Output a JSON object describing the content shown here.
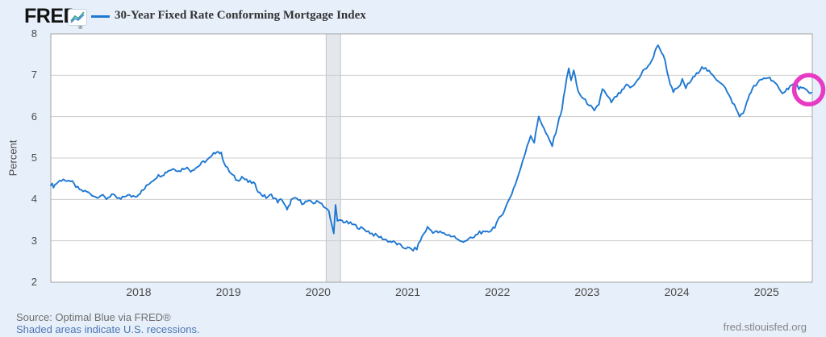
{
  "page": {
    "background": "#e7f0fa"
  },
  "header": {
    "logo_text": "FRED",
    "registered_mark": "®",
    "legend_label": "30-Year Fixed Rate Conforming Mortgage Index"
  },
  "footer": {
    "source_line": "Source: Optimal Blue via FRED®",
    "recession_note": "Shaded areas indicate U.S. recessions.",
    "site_link": "fred.stlouisfed.org"
  },
  "chart_data": {
    "type": "line",
    "title": "30-Year Fixed Rate Conforming Mortgage Index",
    "xlabel": "",
    "ylabel": "Percent",
    "x_range": [
      2017.02,
      2025.51
    ],
    "y_range": [
      2,
      8
    ],
    "yticks": [
      2,
      3,
      4,
      5,
      6,
      7,
      8
    ],
    "xticks": [
      2018,
      2019,
      2020,
      2021,
      2022,
      2023,
      2024,
      2025
    ],
    "grid": true,
    "legend_position": "top",
    "line_color": "#1e78d2",
    "gridline_color": "#cccccc",
    "plot_border_color": "#a3a3a3",
    "recession_band_color": "#e4e7ec",
    "recession_band_edge_color": "#bfc4cb",
    "recession_bands": [
      {
        "start": 2020.09,
        "end": 2020.25
      }
    ],
    "annotations": [
      {
        "type": "circle",
        "x": 2025.47,
        "y": 6.65,
        "radius_px": 18,
        "color": "#e83bc5",
        "stroke_px": 5.5
      }
    ],
    "series": [
      {
        "name": "30-Year Fixed Rate Conforming Mortgage Index",
        "color": "#1e78d2",
        "points": [
          [
            2017.02,
            4.38
          ],
          [
            2017.05,
            4.32
          ],
          [
            2017.1,
            4.42
          ],
          [
            2017.16,
            4.5
          ],
          [
            2017.2,
            4.4
          ],
          [
            2017.24,
            4.46
          ],
          [
            2017.3,
            4.3
          ],
          [
            2017.36,
            4.22
          ],
          [
            2017.42,
            4.18
          ],
          [
            2017.48,
            4.12
          ],
          [
            2017.52,
            4.06
          ],
          [
            2017.58,
            4.1
          ],
          [
            2017.64,
            4.02
          ],
          [
            2017.7,
            4.12
          ],
          [
            2017.74,
            4.05
          ],
          [
            2017.8,
            4.0
          ],
          [
            2017.86,
            4.1
          ],
          [
            2017.92,
            4.08
          ],
          [
            2017.98,
            4.1
          ],
          [
            2018.05,
            4.22
          ],
          [
            2018.12,
            4.4
          ],
          [
            2018.2,
            4.55
          ],
          [
            2018.28,
            4.62
          ],
          [
            2018.33,
            4.7
          ],
          [
            2018.4,
            4.75
          ],
          [
            2018.45,
            4.68
          ],
          [
            2018.52,
            4.78
          ],
          [
            2018.58,
            4.7
          ],
          [
            2018.65,
            4.78
          ],
          [
            2018.72,
            4.9
          ],
          [
            2018.8,
            5.0
          ],
          [
            2018.87,
            5.18
          ],
          [
            2018.92,
            5.1
          ],
          [
            2018.97,
            4.8
          ],
          [
            2019.03,
            4.62
          ],
          [
            2019.1,
            4.45
          ],
          [
            2019.15,
            4.55
          ],
          [
            2019.22,
            4.42
          ],
          [
            2019.28,
            4.4
          ],
          [
            2019.35,
            4.15
          ],
          [
            2019.42,
            4.05
          ],
          [
            2019.48,
            4.1
          ],
          [
            2019.55,
            3.95
          ],
          [
            2019.6,
            4.0
          ],
          [
            2019.655,
            3.73
          ],
          [
            2019.7,
            3.98
          ],
          [
            2019.76,
            4.02
          ],
          [
            2019.82,
            3.92
          ],
          [
            2019.88,
            3.95
          ],
          [
            2019.95,
            3.92
          ],
          [
            2020.02,
            3.95
          ],
          [
            2020.08,
            3.8
          ],
          [
            2020.12,
            3.7
          ],
          [
            2020.155,
            3.35
          ],
          [
            2020.175,
            3.22
          ],
          [
            2020.195,
            3.85
          ],
          [
            2020.215,
            3.45
          ],
          [
            2020.25,
            3.5
          ],
          [
            2020.3,
            3.45
          ],
          [
            2020.38,
            3.4
          ],
          [
            2020.46,
            3.32
          ],
          [
            2020.54,
            3.25
          ],
          [
            2020.62,
            3.15
          ],
          [
            2020.7,
            3.08
          ],
          [
            2020.78,
            3.0
          ],
          [
            2020.86,
            2.95
          ],
          [
            2020.94,
            2.85
          ],
          [
            2021.0,
            2.82
          ],
          [
            2021.06,
            2.78
          ],
          [
            2021.1,
            2.82
          ],
          [
            2021.16,
            3.1
          ],
          [
            2021.22,
            3.32
          ],
          [
            2021.28,
            3.22
          ],
          [
            2021.36,
            3.2
          ],
          [
            2021.44,
            3.15
          ],
          [
            2021.52,
            3.1
          ],
          [
            2021.58,
            2.98
          ],
          [
            2021.66,
            3.02
          ],
          [
            2021.74,
            3.08
          ],
          [
            2021.8,
            3.22
          ],
          [
            2021.86,
            3.18
          ],
          [
            2021.92,
            3.25
          ],
          [
            2021.97,
            3.35
          ],
          [
            2022.04,
            3.6
          ],
          [
            2022.1,
            3.85
          ],
          [
            2022.16,
            4.15
          ],
          [
            2022.22,
            4.5
          ],
          [
            2022.28,
            4.9
          ],
          [
            2022.33,
            5.3
          ],
          [
            2022.37,
            5.55
          ],
          [
            2022.41,
            5.38
          ],
          [
            2022.46,
            6.02
          ],
          [
            2022.5,
            5.8
          ],
          [
            2022.56,
            5.5
          ],
          [
            2022.61,
            5.3
          ],
          [
            2022.67,
            5.8
          ],
          [
            2022.72,
            6.2
          ],
          [
            2022.77,
            6.9
          ],
          [
            2022.795,
            7.15
          ],
          [
            2022.82,
            6.9
          ],
          [
            2022.85,
            7.1
          ],
          [
            2022.9,
            6.6
          ],
          [
            2022.96,
            6.42
          ],
          [
            2023.02,
            6.3
          ],
          [
            2023.08,
            6.12
          ],
          [
            2023.13,
            6.3
          ],
          [
            2023.17,
            6.68
          ],
          [
            2023.22,
            6.5
          ],
          [
            2023.27,
            6.35
          ],
          [
            2023.33,
            6.5
          ],
          [
            2023.39,
            6.62
          ],
          [
            2023.44,
            6.75
          ],
          [
            2023.5,
            6.7
          ],
          [
            2023.56,
            6.88
          ],
          [
            2023.62,
            7.1
          ],
          [
            2023.68,
            7.2
          ],
          [
            2023.74,
            7.45
          ],
          [
            2023.79,
            7.75
          ],
          [
            2023.83,
            7.55
          ],
          [
            2023.87,
            7.35
          ],
          [
            2023.91,
            6.9
          ],
          [
            2023.96,
            6.62
          ],
          [
            2024.02,
            6.68
          ],
          [
            2024.06,
            6.88
          ],
          [
            2024.1,
            6.7
          ],
          [
            2024.16,
            6.88
          ],
          [
            2024.22,
            7.02
          ],
          [
            2024.28,
            7.22
          ],
          [
            2024.34,
            7.12
          ],
          [
            2024.4,
            6.98
          ],
          [
            2024.46,
            6.88
          ],
          [
            2024.52,
            6.78
          ],
          [
            2024.58,
            6.5
          ],
          [
            2024.64,
            6.28
          ],
          [
            2024.7,
            6.0
          ],
          [
            2024.76,
            6.18
          ],
          [
            2024.81,
            6.55
          ],
          [
            2024.86,
            6.72
          ],
          [
            2024.92,
            6.85
          ],
          [
            2024.97,
            6.92
          ],
          [
            2025.02,
            6.95
          ],
          [
            2025.07,
            6.88
          ],
          [
            2025.12,
            6.72
          ],
          [
            2025.16,
            6.58
          ],
          [
            2025.21,
            6.63
          ],
          [
            2025.26,
            6.73
          ],
          [
            2025.31,
            6.78
          ],
          [
            2025.36,
            6.7
          ],
          [
            2025.41,
            6.66
          ],
          [
            2025.46,
            6.62
          ],
          [
            2025.5,
            6.58
          ]
        ]
      }
    ]
  }
}
